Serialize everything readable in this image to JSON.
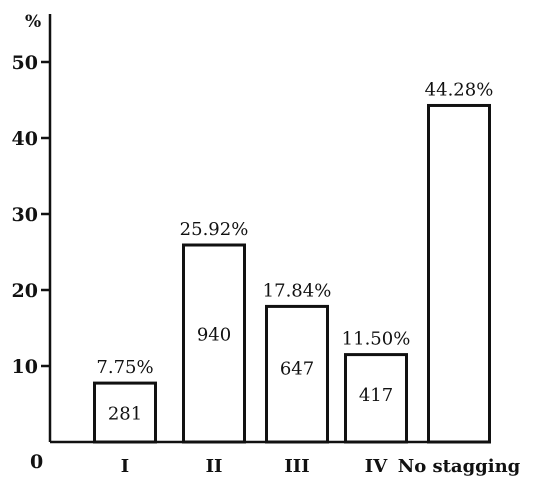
{
  "chart_data": {
    "type": "bar",
    "y_unit": "%",
    "origin_label": "0",
    "categories": [
      "I",
      "II",
      "III",
      "IV",
      "No stagging"
    ],
    "values": [
      7.75,
      25.92,
      17.84,
      11.5,
      44.28
    ],
    "percent_labels": [
      "7.75%",
      "25.92%",
      "17.84%",
      "11.50%",
      "44.28%"
    ],
    "counts": [
      "281",
      "940",
      "647",
      "417",
      ""
    ],
    "yticks": [
      10,
      20,
      30,
      40,
      50
    ],
    "ylim": [
      0,
      55
    ],
    "grid": false,
    "legend": "none",
    "bar_fill": "#ffffff",
    "stroke_color": "#111111"
  }
}
